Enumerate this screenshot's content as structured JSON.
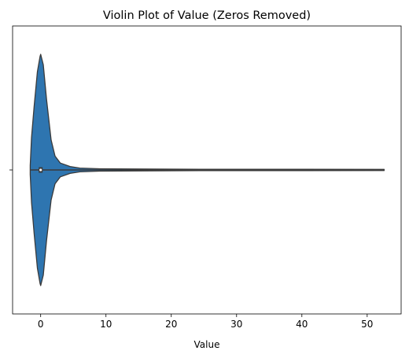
{
  "chart_data": {
    "type": "violin",
    "title": "Violin Plot of Value (Zeros Removed)",
    "xlabel": "Value",
    "ylabel": "",
    "xlim": [
      -4.3,
      55.2
    ],
    "xticks": [
      0,
      10,
      20,
      30,
      40,
      50
    ],
    "yticks": [
      ""
    ],
    "grid": false,
    "legend": "none",
    "fill_color": "#2e75b0",
    "edge_color": "#3a3a3a",
    "density_profile": [
      [
        -1.6,
        0.04
      ],
      [
        -1.4,
        0.28
      ],
      [
        -1.0,
        0.55
      ],
      [
        -0.5,
        0.85
      ],
      [
        -0.1,
        0.98
      ],
      [
        0.0,
        1.0
      ],
      [
        0.4,
        0.91
      ],
      [
        0.9,
        0.61
      ],
      [
        1.6,
        0.26
      ],
      [
        2.2,
        0.12
      ],
      [
        3.0,
        0.06
      ],
      [
        4.5,
        0.03
      ],
      [
        6.0,
        0.016
      ],
      [
        9.0,
        0.01
      ],
      [
        15.0,
        0.008
      ],
      [
        25.0,
        0.006
      ],
      [
        40.0,
        0.006
      ],
      [
        52.6,
        0.005
      ]
    ],
    "box": {
      "q1": -0.3,
      "median": 0.0,
      "q3": 0.3,
      "whisker_low": -1.6,
      "whisker_high": 52.6
    }
  }
}
